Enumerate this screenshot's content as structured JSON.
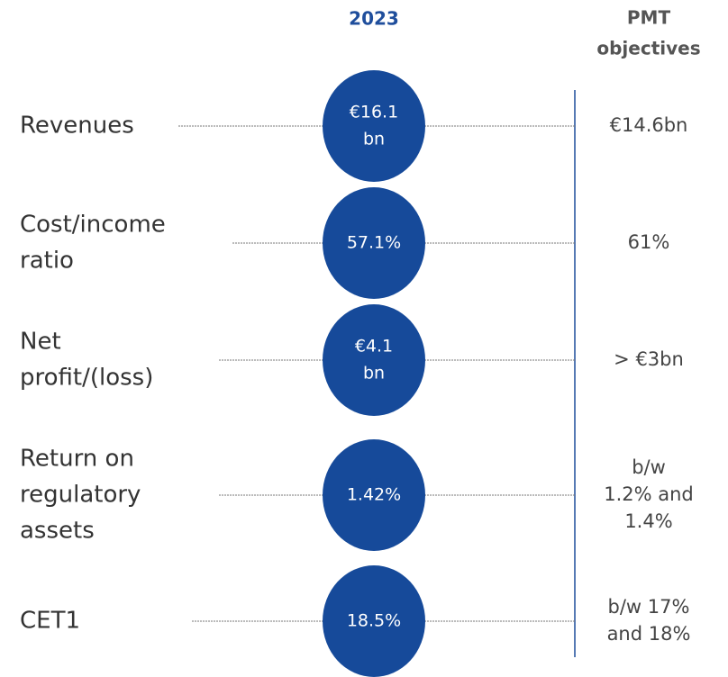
{
  "header": {
    "year": "2023",
    "objectives": [
      "PMT",
      "objectives"
    ]
  },
  "rows": [
    {
      "label": [
        "Revenues"
      ],
      "value": [
        "€16.1",
        "bn"
      ],
      "objective": [
        "€14.6bn"
      ]
    },
    {
      "label": [
        "Cost/income",
        "ratio"
      ],
      "value": [
        "57.1%"
      ],
      "objective": [
        "61%"
      ]
    },
    {
      "label": [
        "Net",
        "profit/(loss)"
      ],
      "value": [
        "€4.1",
        "bn"
      ],
      "objective": [
        "> €3bn"
      ]
    },
    {
      "label": [
        "Return on",
        "regulatory",
        "assets"
      ],
      "value": [
        "1.42%"
      ],
      "objective": [
        "b/w",
        "1.2% and",
        "1.4%"
      ]
    },
    {
      "label": [
        "CET1"
      ],
      "value": [
        "18.5%"
      ],
      "objective": [
        "b/w 17%",
        "and 18%"
      ]
    }
  ]
}
